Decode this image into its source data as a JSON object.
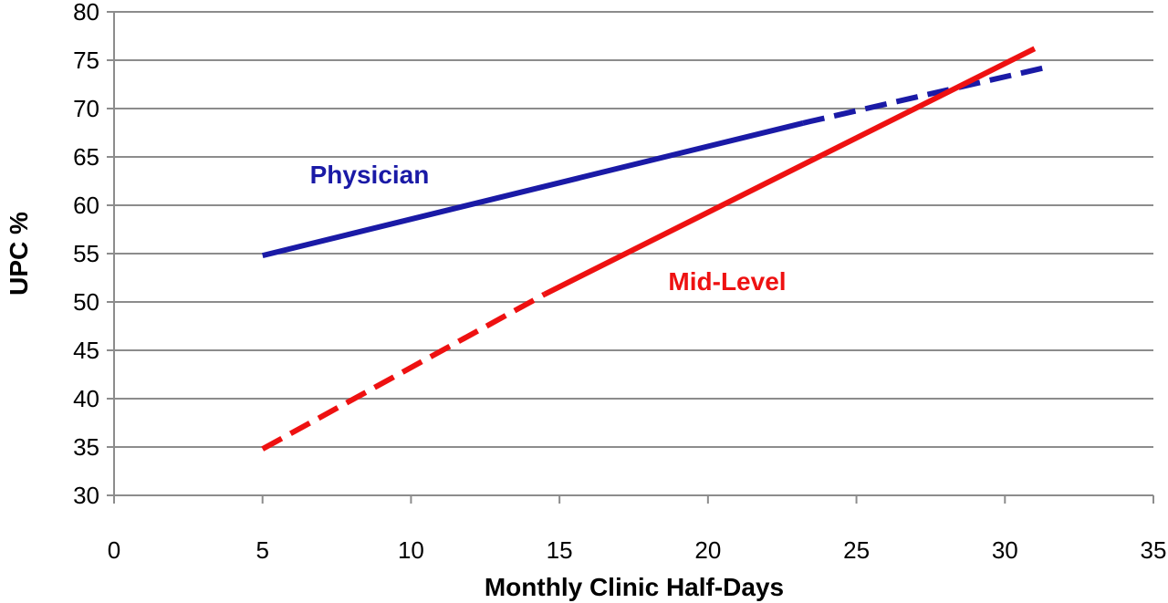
{
  "chart_data": {
    "type": "line",
    "title": "",
    "xlabel": "Monthly Clinic Half-Days",
    "ylabel": "UPC %",
    "xlim": [
      0,
      35
    ],
    "ylim": [
      30,
      80
    ],
    "x_ticks": [
      0,
      5,
      10,
      15,
      20,
      25,
      30,
      35
    ],
    "y_ticks": [
      30,
      35,
      40,
      45,
      50,
      55,
      60,
      65,
      70,
      75,
      80
    ],
    "grid": "horizontal",
    "legend": "none",
    "series": [
      {
        "name": "Physician",
        "color": "#1a1aa6",
        "segments": [
          {
            "style": "solid",
            "x": [
              5,
              23.2
            ],
            "y": [
              54.8,
              68.5
            ]
          },
          {
            "style": "dashed",
            "x": [
              23.2,
              31.3
            ],
            "y": [
              68.5,
              74.2
            ]
          }
        ]
      },
      {
        "name": "Mid-Level",
        "color": "#ee1111",
        "segments": [
          {
            "style": "dashed",
            "x": [
              5,
              14.5
            ],
            "y": [
              34.8,
              50.8
            ]
          },
          {
            "style": "solid",
            "x": [
              14.5,
              31
            ],
            "y": [
              50.8,
              76.2
            ]
          }
        ]
      }
    ]
  }
}
